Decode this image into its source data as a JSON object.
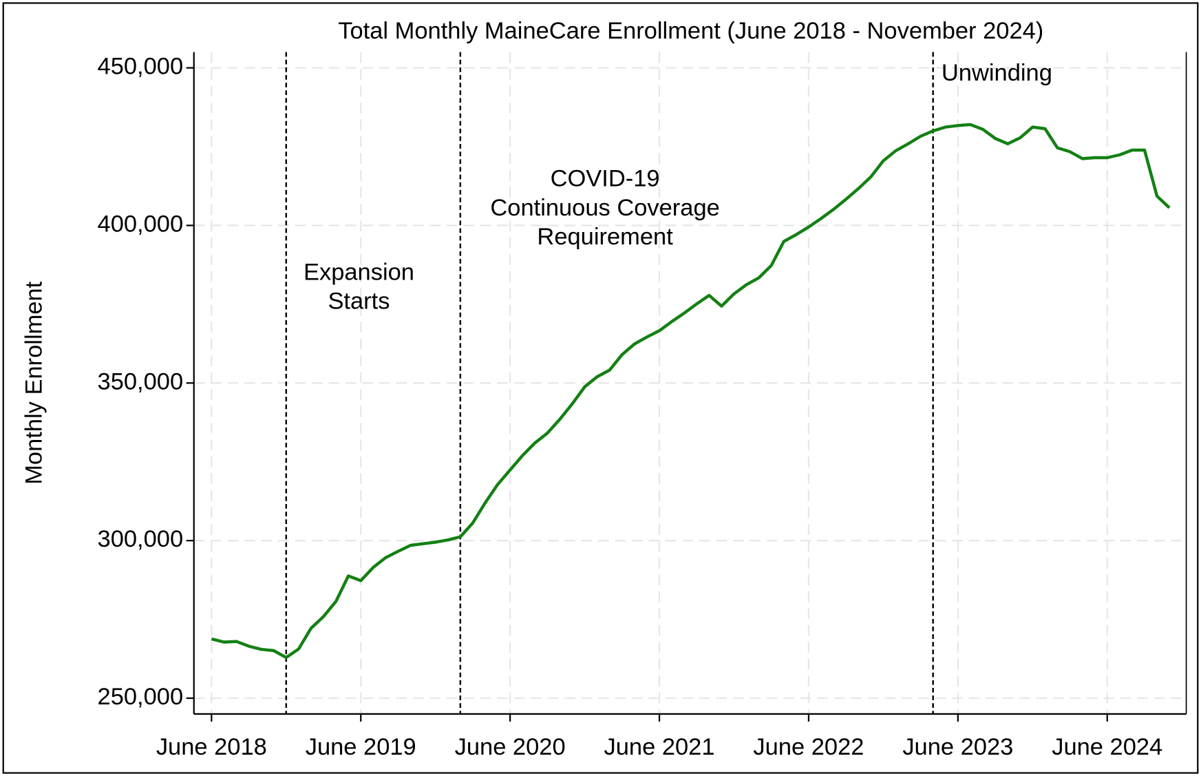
{
  "chart_data": {
    "type": "line",
    "title": "Total Monthly MaineCare Enrollment (June 2018 - November 2024)",
    "y_label": "Monthly Enrollment",
    "x": [
      "2018-06",
      "2018-07",
      "2018-08",
      "2018-09",
      "2018-10",
      "2018-11",
      "2018-12",
      "2019-01",
      "2019-02",
      "2019-03",
      "2019-04",
      "2019-05",
      "2019-06",
      "2019-07",
      "2019-08",
      "2019-09",
      "2019-10",
      "2019-11",
      "2019-12",
      "2020-01",
      "2020-02",
      "2020-03",
      "2020-04",
      "2020-05",
      "2020-06",
      "2020-07",
      "2020-08",
      "2020-09",
      "2020-10",
      "2020-11",
      "2020-12",
      "2021-01",
      "2021-02",
      "2021-03",
      "2021-04",
      "2021-05",
      "2021-06",
      "2021-07",
      "2021-08",
      "2021-09",
      "2021-10",
      "2021-11",
      "2021-12",
      "2022-01",
      "2022-02",
      "2022-03",
      "2022-04",
      "2022-05",
      "2022-06",
      "2022-07",
      "2022-08",
      "2022-09",
      "2022-10",
      "2022-11",
      "2022-12",
      "2023-01",
      "2023-02",
      "2023-03",
      "2023-04",
      "2023-05",
      "2023-06",
      "2023-07",
      "2023-08",
      "2023-09",
      "2023-10",
      "2023-11",
      "2023-12",
      "2024-01",
      "2024-02",
      "2024-03",
      "2024-04",
      "2024-05",
      "2024-06",
      "2024-07",
      "2024-08",
      "2024-09",
      "2024-10",
      "2024-11"
    ],
    "series": [
      {
        "name": "Monthly Enrollment",
        "color": "#138013",
        "values": [
          268800,
          267800,
          268000,
          266500,
          265500,
          265100,
          262900,
          265600,
          272200,
          275900,
          280700,
          288800,
          287300,
          291500,
          294600,
          296600,
          298500,
          299000,
          299500,
          300200,
          301200,
          305600,
          312000,
          317800,
          322400,
          327000,
          331000,
          334100,
          338500,
          343400,
          348800,
          352000,
          354100,
          359000,
          362400,
          364600,
          366600,
          369500,
          372200,
          375100,
          377800,
          374400,
          378300,
          381200,
          383400,
          387300,
          394900,
          397100,
          399500,
          402200,
          405100,
          408300,
          411700,
          415400,
          420500,
          423700,
          425900,
          428300,
          430000,
          431200,
          431700,
          432000,
          430500,
          427600,
          425900,
          427800,
          431200,
          430700,
          424600,
          423400,
          421200,
          421500,
          421500,
          422400,
          423900,
          423900,
          409300,
          405600
        ]
      }
    ],
    "xlim": [
      "2018-06",
      "2024-11"
    ],
    "ylim": [
      245000,
      455000
    ],
    "yticks": [
      {
        "value": 250000,
        "label": "250,000"
      },
      {
        "value": 300000,
        "label": "300,000"
      },
      {
        "value": 350000,
        "label": "350,000"
      },
      {
        "value": 400000,
        "label": "400,000"
      },
      {
        "value": 450000,
        "label": "450,000"
      }
    ],
    "xticks": [
      {
        "value": "2018-06",
        "label": "June 2018"
      },
      {
        "value": "2019-06",
        "label": "June 2019"
      },
      {
        "value": "2020-06",
        "label": "June 2020"
      },
      {
        "value": "2021-06",
        "label": "June 2021"
      },
      {
        "value": "2022-06",
        "label": "June 2022"
      },
      {
        "value": "2023-06",
        "label": "June 2023"
      },
      {
        "value": "2024-06",
        "label": "June 2024"
      }
    ],
    "grid": true,
    "annotations": [
      {
        "x": "2018-12",
        "text": [
          "Expansion",
          "Starts"
        ]
      },
      {
        "x": "2020-02",
        "text": [
          "COVID-19",
          "Continuous Coverage",
          "Requirement"
        ]
      },
      {
        "x": "2023-04",
        "text": [
          "Unwinding"
        ]
      }
    ]
  }
}
